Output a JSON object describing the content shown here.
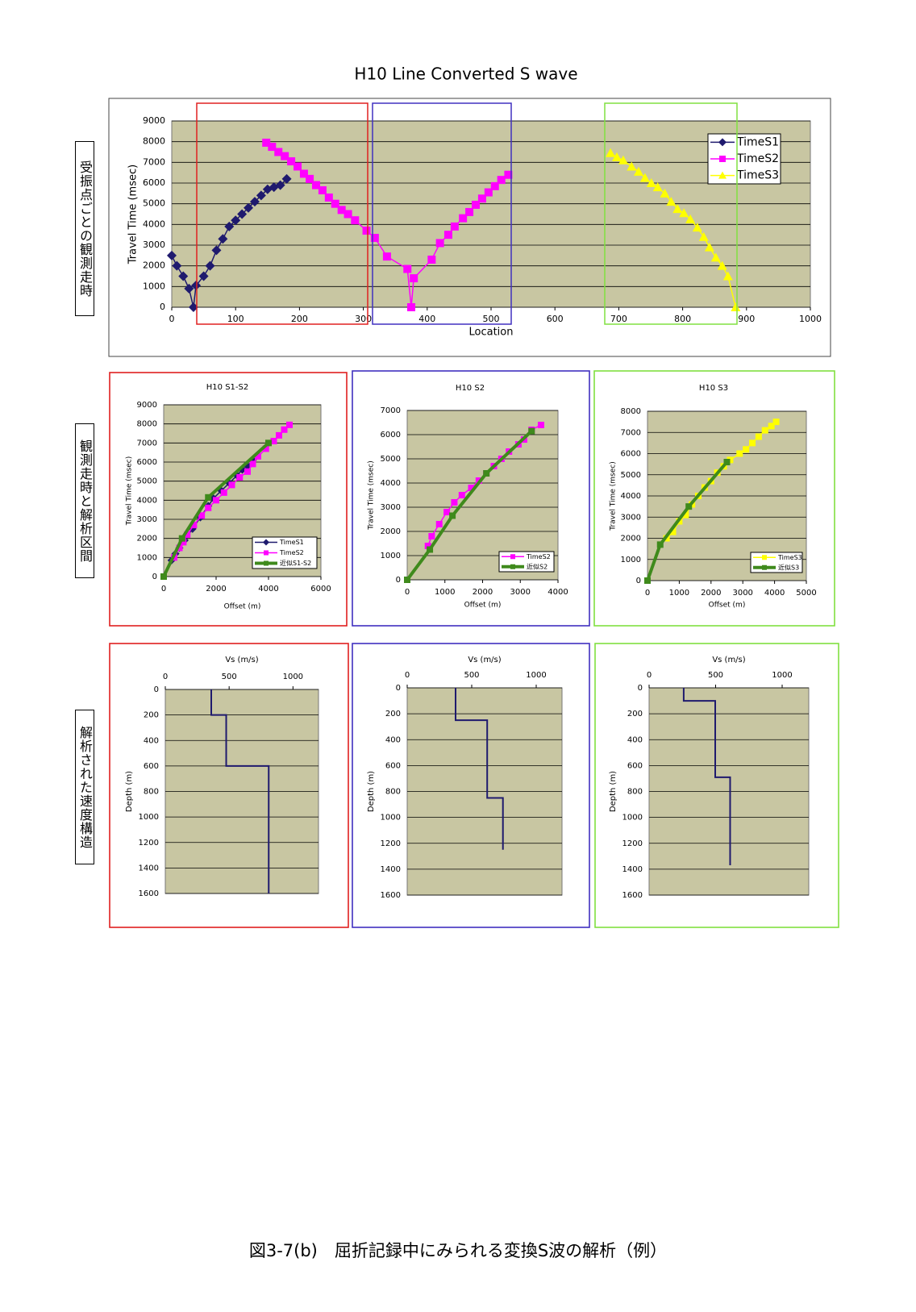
{
  "chart_data": [
    {
      "type": "line",
      "title": "H10 Line Converted S wave",
      "xlabel": "Location",
      "ylabel": "Travel Time (msec)",
      "xlim": [
        0,
        1000
      ],
      "xticks": [
        0,
        100,
        200,
        300,
        400,
        500,
        600,
        700,
        800,
        900,
        1000
      ],
      "ylim": [
        0,
        9000
      ],
      "yticks": [
        0,
        1000,
        2000,
        3000,
        4000,
        5000,
        6000,
        7000,
        8000,
        9000
      ],
      "grid": true,
      "legend_position": "upper right",
      "series": [
        {
          "name": "TimeS1",
          "color": "#1f1a6e",
          "marker": "diamond",
          "x": [
            0,
            8,
            18,
            27,
            34,
            38,
            50,
            60,
            70,
            80,
            90,
            100,
            110,
            120,
            130,
            140,
            150,
            160,
            170,
            180
          ],
          "values": [
            2500,
            2000,
            1500,
            900,
            0,
            1050,
            1500,
            2000,
            2750,
            3300,
            3900,
            4200,
            4500,
            4800,
            5100,
            5400,
            5700,
            5800,
            5900,
            6200
          ]
        },
        {
          "name": "TimeS2",
          "color": "#ff00ff",
          "marker": "square",
          "x": [
            148,
            157,
            167,
            177,
            187,
            197,
            207,
            216,
            226,
            236,
            246,
            256,
            266,
            276,
            287,
            305,
            318,
            337,
            369,
            375,
            379,
            407,
            420,
            433,
            443,
            456,
            466,
            476,
            486,
            496,
            506,
            516,
            527
          ],
          "values": [
            7950,
            7750,
            7500,
            7300,
            7050,
            6800,
            6450,
            6200,
            5900,
            5650,
            5300,
            5000,
            4700,
            4500,
            4200,
            3700,
            3350,
            2450,
            1850,
            0,
            1400,
            2300,
            3100,
            3500,
            3900,
            4300,
            4600,
            4950,
            5250,
            5550,
            5850,
            6150,
            6400
          ]
        },
        {
          "name": "TimeS3",
          "color": "#ffff00",
          "marker": "triangle",
          "x": [
            687,
            697,
            707,
            720,
            731,
            741,
            751,
            761,
            772,
            782,
            792,
            802,
            812,
            823,
            833,
            842,
            852,
            862,
            871,
            883
          ],
          "values": [
            7450,
            7250,
            7100,
            6800,
            6550,
            6250,
            6000,
            5800,
            5500,
            5100,
            4750,
            4550,
            4250,
            3850,
            3400,
            2900,
            2400,
            2000,
            1500,
            0
          ]
        }
      ]
    },
    {
      "type": "line",
      "title": "H10 S1-S2",
      "xlabel": "Offset (m)",
      "ylabel": "Travel Time (msec)",
      "xlim": [
        0,
        6000
      ],
      "xticks": [
        0,
        2000,
        4000,
        6000
      ],
      "ylim": [
        0,
        9000
      ],
      "yticks": [
        0,
        1000,
        2000,
        3000,
        4000,
        5000,
        6000,
        7000,
        8000,
        9000
      ],
      "grid": true,
      "legend_position": "lower right",
      "series": [
        {
          "name": "TimeS1",
          "color": "#1f1a6e",
          "marker": "diamond",
          "x": [
            300,
            450,
            600,
            800,
            1100,
            1400,
            1700,
            1900,
            2200,
            2500,
            2800,
            3000,
            3200,
            3400
          ],
          "values": [
            850,
            1200,
            1500,
            1900,
            2500,
            3100,
            3700,
            4100,
            4500,
            4900,
            5300,
            5600,
            5800,
            6100
          ]
        },
        {
          "name": "TimeS2",
          "color": "#ff00ff",
          "marker": "square",
          "x": [
            400,
            600,
            750,
            900,
            1150,
            1450,
            1700,
            2000,
            2300,
            2600,
            2900,
            3200,
            3400,
            3600,
            3900,
            4200,
            4400,
            4600,
            4800
          ],
          "values": [
            1000,
            1500,
            1800,
            2200,
            2700,
            3200,
            3600,
            4000,
            4400,
            4800,
            5200,
            5500,
            5900,
            6300,
            6700,
            7100,
            7400,
            7700,
            7950
          ]
        },
        {
          "name": "近似S1-S2",
          "color": "#3f8a1c",
          "marker": "square",
          "width": 4,
          "x": [
            0,
            700,
            1700,
            4000
          ],
          "values": [
            0,
            2000,
            4150,
            7000
          ]
        }
      ]
    },
    {
      "type": "line",
      "title": "H10 S2",
      "xlabel": "Offset (m)",
      "ylabel": "Travel Time (msec)",
      "xlim": [
        0,
        4000
      ],
      "xticks": [
        0,
        1000,
        2000,
        3000,
        4000
      ],
      "ylim": [
        0,
        7000
      ],
      "yticks": [
        0,
        1000,
        2000,
        3000,
        4000,
        5000,
        6000,
        7000
      ],
      "grid": true,
      "legend_position": "lower right",
      "series": [
        {
          "name": "TimeS2",
          "color": "#ff00ff",
          "marker": "square",
          "x": [
            550,
            650,
            850,
            1050,
            1250,
            1450,
            1700,
            1900,
            2100,
            2300,
            2500,
            2700,
            2950,
            3100,
            3300,
            3550
          ],
          "values": [
            1400,
            1800,
            2300,
            2800,
            3200,
            3500,
            3800,
            4100,
            4400,
            4700,
            5000,
            5300,
            5600,
            5800,
            6200,
            6400
          ]
        },
        {
          "name": "近似S2",
          "color": "#3f8a1c",
          "marker": "square",
          "width": 4,
          "x": [
            0,
            600,
            1200,
            2100,
            3300
          ],
          "values": [
            0,
            1250,
            2650,
            4400,
            6150
          ]
        }
      ]
    },
    {
      "type": "line",
      "title": "H10 S3",
      "xlabel": "Offset (m)",
      "ylabel": "Travel Time (msec)",
      "xlim": [
        0,
        5000
      ],
      "xticks": [
        0,
        1000,
        2000,
        3000,
        4000,
        5000
      ],
      "ylim": [
        0,
        8000
      ],
      "yticks": [
        0,
        1000,
        2000,
        3000,
        4000,
        5000,
        6000,
        7000,
        8000
      ],
      "grid": true,
      "legend_position": "lower right",
      "series": [
        {
          "name": "TimeS3",
          "color": "#ffff00",
          "marker": "square",
          "x": [
            600,
            800,
            1000,
            1200,
            1400,
            1600,
            1800,
            2000,
            2200,
            2400,
            2600,
            2900,
            3100,
            3300,
            3500,
            3700,
            3900,
            4050
          ],
          "values": [
            2000,
            2300,
            2800,
            3100,
            3600,
            4000,
            4400,
            4700,
            5100,
            5400,
            5700,
            6000,
            6200,
            6500,
            6800,
            7100,
            7300,
            7500
          ]
        },
        {
          "name": "近似S3",
          "color": "#3f8a1c",
          "marker": "square",
          "width": 4,
          "x": [
            0,
            400,
            1300,
            2500
          ],
          "values": [
            0,
            1700,
            3500,
            5600
          ]
        }
      ]
    },
    {
      "type": "line",
      "xlabel": "Vs (m/s)",
      "ylabel": "Depth (m)",
      "xaxis_position": "top",
      "y_reversed": true,
      "xlim": [
        0,
        1200
      ],
      "xticks": [
        0,
        500,
        1000
      ],
      "ylim": [
        0,
        1600
      ],
      "yticks": [
        0,
        200,
        400,
        600,
        800,
        1000,
        1200,
        1400,
        1600
      ],
      "grid": true,
      "series": [
        {
          "color": "#1f1a6e",
          "marker": "none",
          "width": 2,
          "x": [
            360,
            360,
            477,
            477,
            810,
            810
          ],
          "values": [
            0,
            200,
            200,
            600,
            600,
            1600
          ]
        }
      ]
    },
    {
      "type": "line",
      "xlabel": "Vs (m/s)",
      "ylabel": "Depth (m)",
      "xaxis_position": "top",
      "y_reversed": true,
      "xlim": [
        0,
        1200
      ],
      "xticks": [
        0,
        500,
        1000
      ],
      "ylim": [
        0,
        1600
      ],
      "yticks": [
        0,
        200,
        400,
        600,
        800,
        1000,
        1200,
        1400,
        1600
      ],
      "grid": true,
      "series": [
        {
          "color": "#1f1a6e",
          "marker": "none",
          "width": 2,
          "x": [
            375,
            375,
            620,
            620,
            742,
            742
          ],
          "values": [
            0,
            250,
            250,
            850,
            850,
            1250
          ]
        }
      ]
    },
    {
      "type": "line",
      "xlabel": "Vs (m/s)",
      "ylabel": "Depth (m)",
      "xaxis_position": "top",
      "y_reversed": true,
      "xlim": [
        0,
        1200
      ],
      "xticks": [
        0,
        500,
        1000
      ],
      "ylim": [
        0,
        1600
      ],
      "yticks": [
        0,
        200,
        400,
        600,
        800,
        1000,
        1200,
        1400,
        1600
      ],
      "grid": true,
      "series": [
        {
          "color": "#1f1a6e",
          "marker": "none",
          "width": 2,
          "x": [
            260,
            260,
            497,
            497,
            609,
            609
          ],
          "values": [
            0,
            100,
            100,
            690,
            690,
            1370
          ]
        }
      ]
    }
  ],
  "side_labels": [
    "受振点ごとの観測走時",
    "観測走時と解析区間",
    "解析された速度構造"
  ],
  "caption": "図3-7(b)　屈折記録中にみられる変換S波の解析（例）"
}
